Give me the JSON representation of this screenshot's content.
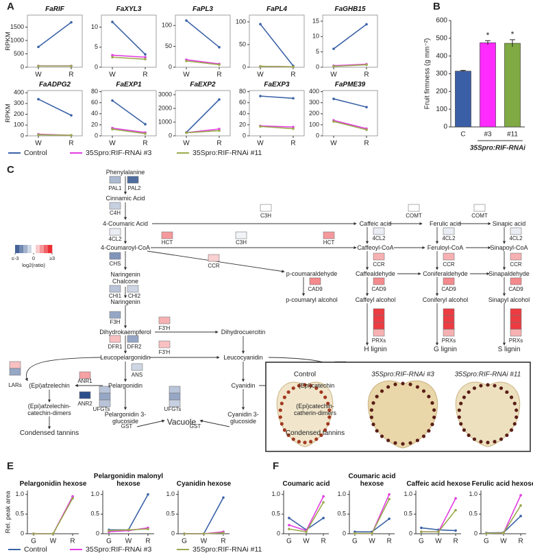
{
  "panel_labels": [
    "A",
    "B",
    "C",
    "D",
    "E",
    "F"
  ],
  "chart_data": [
    {
      "type": "line",
      "title": "FaRIF",
      "y_label": "RPKM",
      "categories": [
        "W",
        "R"
      ],
      "series": [
        {
          "name": "Control",
          "color": "#3a62a7",
          "values": [
            760,
            1680
          ]
        },
        {
          "name": "35Spro:RIF-RNAi #3",
          "color": "#e23ce0",
          "values": [
            50,
            50
          ]
        },
        {
          "name": "35Spro:RIF-RNAi #11",
          "color": "#9aa94b",
          "values": [
            45,
            45
          ]
        }
      ],
      "ylim": [
        0,
        1950
      ],
      "yticks": [
        0,
        500,
        1000,
        1500
      ]
    },
    {
      "type": "line",
      "title": "FaXYL3",
      "categories": [
        "W",
        "R"
      ],
      "series": [
        {
          "color": "#3a62a7",
          "values": [
            11.3,
            3.2
          ]
        },
        {
          "color": "#e23ce0",
          "values": [
            3.0,
            2.5
          ]
        },
        {
          "color": "#9aa94b",
          "values": [
            2.5,
            2.0
          ]
        }
      ],
      "ylim": [
        0,
        13
      ],
      "yticks": [
        0,
        5,
        10
      ]
    },
    {
      "type": "line",
      "title": "FaPL3",
      "categories": [
        "W",
        "R"
      ],
      "series": [
        {
          "color": "#3a62a7",
          "values": [
            112,
            48
          ]
        },
        {
          "color": "#e23ce0",
          "values": [
            18,
            8
          ]
        },
        {
          "color": "#9aa94b",
          "values": [
            15,
            6
          ]
        }
      ],
      "ylim": [
        0,
        125
      ],
      "yticks": [
        0,
        50,
        100
      ]
    },
    {
      "type": "line",
      "title": "FaPL4",
      "categories": [
        "W",
        "R"
      ],
      "series": [
        {
          "color": "#3a62a7",
          "values": [
            95,
            3
          ]
        },
        {
          "color": "#e23ce0",
          "values": [
            2,
            1
          ]
        },
        {
          "color": "#9aa94b",
          "values": [
            2,
            1
          ]
        }
      ],
      "ylim": [
        0,
        115
      ],
      "yticks": [
        0,
        50,
        100
      ]
    },
    {
      "type": "line",
      "title": "FaGHB15",
      "categories": [
        "W",
        "R"
      ],
      "series": [
        {
          "color": "#3a62a7",
          "values": [
            6,
            14
          ]
        },
        {
          "color": "#e23ce0",
          "values": [
            0.5,
            1
          ]
        },
        {
          "color": "#9aa94b",
          "values": [
            0.3,
            0.8
          ]
        }
      ],
      "ylim": [
        0,
        17
      ],
      "yticks": [
        0,
        5,
        10,
        15
      ]
    },
    {
      "type": "line",
      "title": "FaADPG2",
      "y_label": "RPKM",
      "categories": [
        "W",
        "R"
      ],
      "series": [
        {
          "color": "#3a62a7",
          "values": [
            340,
            190
          ]
        },
        {
          "color": "#e23ce0",
          "values": [
            15,
            5
          ]
        },
        {
          "color": "#9aa94b",
          "values": [
            10,
            5
          ]
        }
      ],
      "ylim": [
        0,
        420
      ],
      "yticks": [
        0,
        100,
        200,
        300,
        400
      ]
    },
    {
      "type": "line",
      "title": "FaEXP1",
      "categories": [
        "W",
        "R"
      ],
      "series": [
        {
          "color": "#3a62a7",
          "values": [
            64,
            21
          ]
        },
        {
          "color": "#e23ce0",
          "values": [
            14,
            6
          ]
        },
        {
          "color": "#9aa94b",
          "values": [
            12,
            4
          ]
        }
      ],
      "ylim": [
        0,
        82
      ],
      "yticks": [
        0,
        20,
        40,
        60,
        80
      ]
    },
    {
      "type": "line",
      "title": "FaEXP2",
      "categories": [
        "W",
        "R"
      ],
      "series": [
        {
          "color": "#3a62a7",
          "values": [
            250,
            2650
          ]
        },
        {
          "color": "#e23ce0",
          "values": [
            230,
            500
          ]
        },
        {
          "color": "#9aa94b",
          "values": [
            220,
            380
          ]
        }
      ],
      "ylim": [
        0,
        3300
      ],
      "yticks": [
        0,
        1000,
        2000,
        3000
      ]
    },
    {
      "type": "line",
      "title": "FaEXP3",
      "categories": [
        "W",
        "R"
      ],
      "series": [
        {
          "color": "#3a62a7",
          "values": [
            72,
            68
          ]
        },
        {
          "color": "#e23ce0",
          "values": [
            18,
            16
          ]
        },
        {
          "color": "#9aa94b",
          "values": [
            17,
            13
          ]
        }
      ],
      "ylim": [
        0,
        82
      ],
      "yticks": [
        0,
        20,
        40,
        60,
        80
      ]
    },
    {
      "type": "line",
      "title": "FaPME39",
      "categories": [
        "W",
        "R"
      ],
      "series": [
        {
          "color": "#3a62a7",
          "values": [
            335,
            260
          ]
        },
        {
          "color": "#e23ce0",
          "values": [
            140,
            65
          ]
        },
        {
          "color": "#9aa94b",
          "values": [
            130,
            55
          ]
        }
      ],
      "ylim": [
        0,
        410
      ],
      "yticks": [
        0,
        100,
        200,
        300,
        400
      ]
    },
    {
      "type": "bar",
      "y_label": "Fruit firmness (g mm⁻²)",
      "categories": [
        "C",
        "#3",
        "#11"
      ],
      "values": [
        315,
        475,
        472
      ],
      "errors": [
        4,
        12,
        20
      ],
      "colors": [
        "#3b5fa6",
        "#ff2bff",
        "#80aa44"
      ],
      "annotations": [
        "*",
        "*"
      ],
      "group_label": "35Spro:RIF-RNAi",
      "ylim": [
        0,
        600
      ],
      "yticks": [
        0,
        100,
        200,
        300,
        400,
        500,
        600
      ]
    },
    {
      "type": "line",
      "title": "Pelargonidin hexose",
      "y_label": "Rel. peak area",
      "categories": [
        "G",
        "W",
        "R"
      ],
      "series": [
        {
          "name": "Control",
          "color": "#3a62a7",
          "values": [
            0,
            0,
            0.92
          ]
        },
        {
          "name": "35Spro:RIF-RNAi #3",
          "color": "#e23ce0",
          "values": [
            0,
            0,
            0.95
          ]
        },
        {
          "name": "35Spro:RIF-RNAi #11",
          "color": "#9aa94b",
          "values": [
            0,
            0,
            0.9
          ]
        }
      ],
      "ylim": [
        0,
        1.1
      ],
      "yticks": [
        0,
        0.5,
        {
          "value": 1,
          "label": "1.0"
        }
      ]
    },
    {
      "type": "line",
      "title": "Pelargonidin malonyl hexose",
      "categories": [
        "G",
        "W",
        "R"
      ],
      "series": [
        {
          "color": "#3a62a7",
          "values": [
            0.1,
            0.1,
            1.0
          ]
        },
        {
          "color": "#e23ce0",
          "values": [
            0.05,
            0.08,
            0.15
          ]
        },
        {
          "color": "#9aa94b",
          "values": [
            0.08,
            0.1,
            0.12
          ]
        }
      ],
      "ylim": [
        0,
        1.1
      ],
      "yticks": [
        0,
        0.5,
        {
          "value": 1,
          "label": "1.0"
        }
      ]
    },
    {
      "type": "line",
      "title": "Cyanidin hexose",
      "categories": [
        "G",
        "W",
        "R"
      ],
      "series": [
        {
          "color": "#3a62a7",
          "values": [
            0,
            0,
            0.92
          ]
        },
        {
          "color": "#e23ce0",
          "values": [
            0,
            0,
            0.05
          ]
        },
        {
          "color": "#9aa94b",
          "values": [
            0,
            0,
            0.02
          ]
        }
      ],
      "ylim": [
        0,
        1.1
      ],
      "yticks": [
        0,
        0.5,
        {
          "value": 1,
          "label": "1.0"
        }
      ]
    },
    {
      "type": "line",
      "title": "Coumaric acid",
      "categories": [
        "G",
        "W",
        "R"
      ],
      "series": [
        {
          "color": "#3a62a7",
          "values": [
            0.4,
            0.1,
            0.4
          ]
        },
        {
          "color": "#e23ce0",
          "values": [
            0.22,
            0.08,
            0.95
          ]
        },
        {
          "color": "#9aa94b",
          "values": [
            0.12,
            0.05,
            0.8
          ]
        }
      ],
      "ylim": [
        0,
        1.1
      ],
      "yticks": [
        0,
        0.5,
        {
          "value": 1,
          "label": "1.0"
        }
      ]
    },
    {
      "type": "line",
      "title": "Coumaric acid hexose",
      "categories": [
        "G",
        "W",
        "R"
      ],
      "series": [
        {
          "color": "#3a62a7",
          "values": [
            0.05,
            0.05,
            0.38
          ]
        },
        {
          "color": "#e23ce0",
          "values": [
            0.01,
            0.01,
            1.0
          ]
        },
        {
          "color": "#9aa94b",
          "values": [
            0.01,
            0.01,
            0.88
          ]
        }
      ],
      "ylim": [
        0,
        1.1
      ],
      "yticks": [
        0,
        0.5,
        {
          "value": 1,
          "label": "1.0"
        }
      ]
    },
    {
      "type": "line",
      "title": "Caffeic acid hexose",
      "categories": [
        "G",
        "W",
        "R"
      ],
      "series": [
        {
          "color": "#3a62a7",
          "values": [
            0.15,
            0.1,
            0.08
          ]
        },
        {
          "color": "#e23ce0",
          "values": [
            0.05,
            0.05,
            0.9
          ]
        },
        {
          "color": "#9aa94b",
          "values": [
            0.05,
            0.05,
            0.6
          ]
        }
      ],
      "ylim": [
        0,
        1.1
      ],
      "yticks": [
        0,
        0.5,
        {
          "value": 1,
          "label": "1.0"
        }
      ]
    },
    {
      "type": "line",
      "title": "Ferulic acid hexose",
      "categories": [
        "G",
        "W",
        "R"
      ],
      "series": [
        {
          "color": "#3a62a7",
          "values": [
            0.02,
            0.03,
            0.45
          ]
        },
        {
          "color": "#e23ce0",
          "values": [
            0.01,
            0.02,
            0.98
          ]
        },
        {
          "color": "#9aa94b",
          "values": [
            0.01,
            0.02,
            0.72
          ]
        }
      ],
      "ylim": [
        0,
        1.1
      ],
      "yticks": [
        0,
        0.5,
        {
          "value": 1,
          "label": "1.0"
        }
      ]
    }
  ],
  "pathway": {
    "compounds": [
      "Phenylalanine",
      "Cinnamic Acid",
      "4-Coumaric Acid",
      "4-Coumaroyl-CoA",
      "Naringenin Chalcone",
      "Naringenin",
      "Dihydrokaempferol",
      "Leucopelargonidin",
      "Pelargonidin",
      "Pelargonidin 3-glucoside",
      "Dihydrocuercitin",
      "Leucocyanidin",
      "Cyanidin",
      "Cyanidin 3-glucoside",
      "(Epi)afzelechin",
      "(Epi)afzelechin-catechin-dimers",
      "Condensed tannins",
      "(Epi)catechin",
      "(Epi)catechin-catherin-dimers",
      "Condensed tannins",
      "Vacuole",
      "Caffeic acid",
      "Ferulic acid",
      "Sinapic acid",
      "Caffeoyl-CoA",
      "Feruloyl-CoA",
      "Sinapoyl-CoA",
      "p-coumaraldehyde",
      "Caffealdehyde",
      "Coniferaldehyde",
      "Sinapaldehyde",
      "p-coumaryl alcohol",
      "Caffeyl alcohol",
      "Coniferyl alcohol",
      "Sinapyl alcohol",
      "H lignin",
      "G lignin",
      "S lignin"
    ],
    "enzymes": [
      {
        "label": "PAL1",
        "values": [
          -1.2
        ]
      },
      {
        "label": "PAL2",
        "values": [
          -2.5
        ]
      },
      {
        "label": "C4H",
        "values": [
          -0.8
        ]
      },
      {
        "label": "4CL2",
        "values": [
          -0.3
        ]
      },
      {
        "label": "CHS",
        "values": [
          -1.8
        ]
      },
      {
        "label": "CHI1",
        "values": [
          -1.0
        ]
      },
      {
        "label": "CHI2",
        "values": [
          -0.7
        ]
      },
      {
        "label": "F3H",
        "values": [
          -1.5
        ]
      },
      {
        "label": "DFR1",
        "values": [
          0.8
        ]
      },
      {
        "label": "DFR2",
        "values": [
          -1.5
        ]
      },
      {
        "label": "ANS",
        "values": [
          -0.7
        ]
      },
      {
        "label": "F3'H",
        "values": [
          1.0
        ]
      },
      {
        "label": "F3'H",
        "values": [
          0.8
        ]
      },
      {
        "label": "ANR1",
        "values": [
          1.2
        ]
      },
      {
        "label": "ANR2",
        "values": [
          -3
        ]
      },
      {
        "label": "ANR1",
        "values": [
          1.0
        ]
      },
      {
        "label": "ANR2",
        "values": [
          -3
        ]
      },
      {
        "label": "C3H",
        "values": [
          0
        ]
      },
      {
        "label": "COMT",
        "values": [
          0
        ]
      },
      {
        "label": "COMT",
        "values": [
          0
        ]
      },
      {
        "label": "HCT",
        "values": [
          1.3
        ]
      },
      {
        "label": "C3H",
        "values": [
          -0.2
        ]
      },
      {
        "label": "HCT",
        "values": [
          1.3
        ]
      },
      {
        "label": "CCR",
        "values": [
          0.6
        ]
      },
      {
        "label": "4CL2",
        "values": [
          -0.3
        ]
      },
      {
        "label": "4CL2",
        "values": [
          -0.3
        ]
      },
      {
        "label": "4CL2",
        "values": [
          -0.3
        ]
      },
      {
        "label": "CCR",
        "values": [
          1.0
        ]
      },
      {
        "label": "CCR",
        "values": [
          1.0
        ]
      },
      {
        "label": "CCR",
        "values": [
          1.0
        ]
      },
      {
        "label": "CAD9",
        "values": [
          1.5
        ]
      },
      {
        "label": "CAD9",
        "values": [
          1.5
        ]
      },
      {
        "label": "CAD9",
        "values": [
          1.5
        ]
      },
      {
        "label": "CAD9",
        "values": [
          1.5
        ]
      },
      {
        "label": "PRXs",
        "values": [
          2.5,
          2.5,
          2.5,
          1.0
        ]
      },
      {
        "label": "PRXs",
        "values": [
          2.5,
          2.5,
          2.5,
          1.0
        ]
      },
      {
        "label": "PRXs",
        "values": [
          2.5,
          2.5,
          2.5,
          1.0
        ]
      },
      {
        "label": "LARs",
        "values": [
          0.8,
          -1.5
        ]
      },
      {
        "label": "LARs",
        "values": [
          0.8,
          -1.5
        ]
      },
      {
        "label": "UFGTs",
        "values": [
          -1.0,
          -1.5,
          -1.0
        ]
      },
      {
        "label": "UFGTs",
        "values": [
          -1.0,
          -1.5,
          -0.8
        ]
      }
    ],
    "other_labels": [
      "GST",
      "GST"
    ],
    "legend": {
      "title": "log2(ratio)",
      "ticks": [
        {
          "value": -3,
          "label": "≤-3"
        },
        0,
        {
          "value": 3,
          "label": "≥3"
        }
      ]
    }
  },
  "photo": {
    "labels": [
      "Control",
      "35Spro:RIF-RNAi #3",
      "35Spro:RIF-RNAi #11"
    ]
  }
}
